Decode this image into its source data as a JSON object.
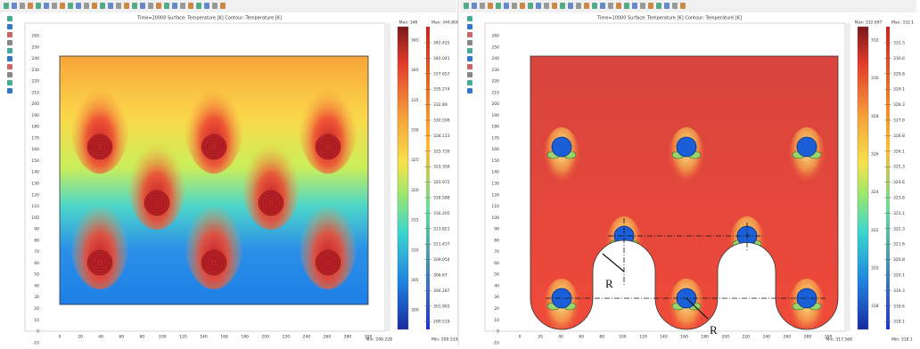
{
  "panels": [
    {
      "title": "Time=20000   Surface: Temperature [K]   Contour: Temperature [K]",
      "surface_max": "Max: 346",
      "surface_min": "Min: 298.228",
      "surface_ticks": [
        "345",
        "340",
        "335",
        "330",
        "325",
        "320",
        "315",
        "310",
        "305",
        "300"
      ],
      "contour_max": "Max: 344.808",
      "contour_min": "Min: 299.519",
      "contour_ticks": [
        "342.425",
        "340.041",
        "337.657",
        "335.274",
        "332.89",
        "330.506",
        "328.123",
        "325.739",
        "323.356",
        "320.972",
        "318.588",
        "316.205",
        "313.821",
        "311.437",
        "309.054",
        "306.67",
        "304.287",
        "301.903",
        "299.519"
      ]
    },
    {
      "title": "Time=10000   Surface: Temperature [K]   Contour: Temperature [K]",
      "surface_max": "Max: 332.697",
      "surface_min": "Min: 317.568",
      "surface_ticks": [
        "332",
        "330",
        "328",
        "326",
        "324",
        "322",
        "320",
        "318"
      ],
      "contour_max": "Max: 332.1",
      "contour_min": "Min: 318.1",
      "contour_ticks": [
        "331.3",
        "330.6",
        "329.8",
        "329.1",
        "328.3",
        "327.6",
        "326.8",
        "326.1",
        "325.3",
        "324.6",
        "323.8",
        "323.1",
        "322.3",
        "321.6",
        "320.8",
        "320.1",
        "319.3",
        "318.6",
        "318.1"
      ]
    }
  ],
  "y_ticks": [
    "260",
    "250",
    "240",
    "230",
    "220",
    "210",
    "200",
    "190",
    "180",
    "170",
    "160",
    "150",
    "140",
    "130",
    "120",
    "110",
    "100",
    "90",
    "80",
    "70",
    "60",
    "50",
    "40",
    "30",
    "20",
    "10",
    "0",
    "-10"
  ],
  "x_ticks": [
    "0",
    "20",
    "40",
    "60",
    "80",
    "100",
    "120",
    "140",
    "160",
    "180",
    "200",
    "220",
    "240",
    "260",
    "280",
    "300"
  ],
  "annotations": [
    "R",
    "R"
  ]
}
